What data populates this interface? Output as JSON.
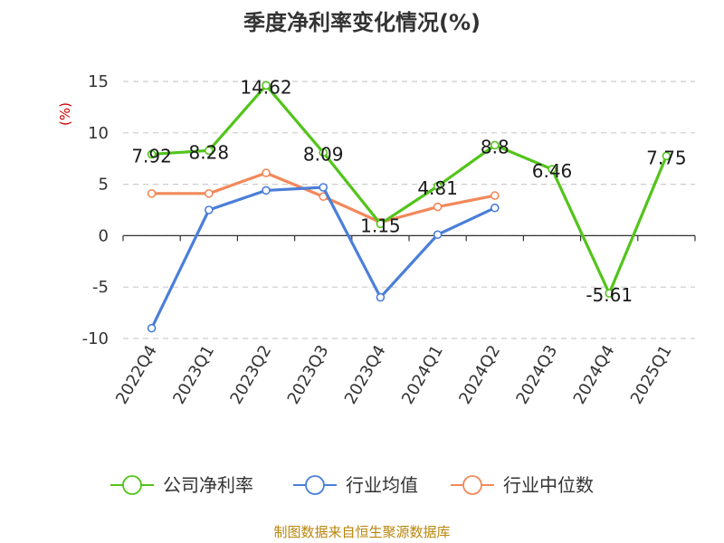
{
  "colors": {
    "company": "#52c41a",
    "industry_avg": "#4a7fd9",
    "industry_median": "#f2885a",
    "ylabel": "#cc0000",
    "source": "#b8860b",
    "grid": "#cccccc",
    "axis": "#333333"
  },
  "footer": {
    "source": "制图数据来自恒生聚源数据库"
  },
  "chart_data": {
    "type": "line",
    "title": "季度净利率变化情况(%)",
    "ylabel": "(%)",
    "xlabel": "",
    "ylim": [
      -10,
      15
    ],
    "yticks": [
      15,
      10,
      5,
      0,
      -5,
      -10
    ],
    "grid": "horizontal-dashed",
    "legend_position": "bottom-center",
    "categories": [
      "2022Q4",
      "2023Q1",
      "2023Q2",
      "2023Q3",
      "2023Q4",
      "2024Q1",
      "2024Q2",
      "2024Q3",
      "2024Q4",
      "2025Q1"
    ],
    "series": [
      {
        "name": "公司净利率",
        "key": "company",
        "values": [
          7.92,
          8.28,
          14.62,
          8.09,
          1.15,
          4.81,
          8.8,
          6.46,
          -5.61,
          7.75
        ],
        "labels": [
          "7.92",
          "8.28",
          "14.62",
          "8.09",
          "1.15",
          "4.81",
          "8.8",
          "6.46",
          "-5.61",
          "7.75"
        ]
      },
      {
        "name": "行业均值",
        "key": "industry_avg",
        "values": [
          -9.0,
          2.5,
          4.4,
          4.7,
          -6.0,
          0.1,
          2.7,
          null,
          null,
          null
        ]
      },
      {
        "name": "行业中位数",
        "key": "industry_median",
        "values": [
          4.1,
          4.1,
          6.1,
          3.8,
          1.3,
          2.8,
          3.9,
          null,
          null,
          null
        ]
      }
    ]
  }
}
